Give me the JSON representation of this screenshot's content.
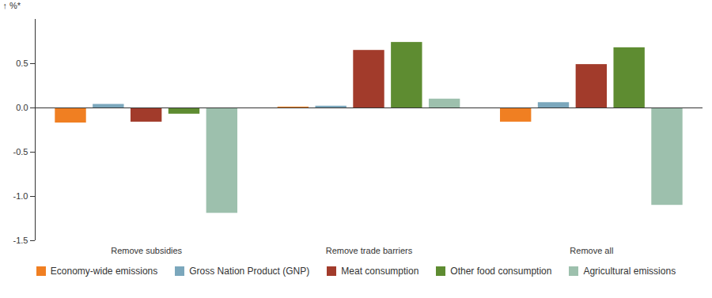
{
  "chart_data": {
    "type": "bar",
    "y_label": "%*",
    "categories": [
      "Remove subsidies",
      "Remove trade barriers",
      "Remove all"
    ],
    "series": [
      {
        "name": "Economy-wide emissions",
        "color": "#f07f22",
        "values": [
          -0.17,
          0.01,
          -0.16
        ]
      },
      {
        "name": "Gross Nation Product (GNP)",
        "color": "#7ba7bc",
        "values": [
          0.04,
          0.02,
          0.06
        ]
      },
      {
        "name": "Meat consumption",
        "color": "#a23b2b",
        "values": [
          -0.16,
          0.65,
          0.49
        ]
      },
      {
        "name": "Other food consumption",
        "color": "#5e8c31",
        "values": [
          -0.07,
          0.74,
          0.68
        ]
      },
      {
        "name": "Agricultural emissions",
        "color": "#9dc0ad",
        "values": [
          -1.19,
          0.1,
          -1.1
        ]
      }
    ],
    "ylim": [
      -1.5,
      1.0
    ],
    "yticks": [
      -1.5,
      {
        "value": -1,
        "label": "-1.0"
      },
      -0.5,
      {
        "value": 0,
        "label": "0.0"
      },
      0.5
    ],
    "legend": "bottom"
  }
}
